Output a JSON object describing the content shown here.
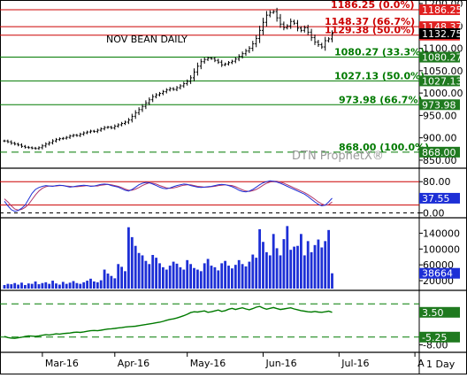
{
  "chart_title": "NOV BEAN DAILY",
  "watermark": "DTN ProphetX®",
  "timeframe": "1 Day",
  "colors": {
    "bar": "#000000",
    "resistance_line": "#cc0000",
    "support_line": "#007a00",
    "stoch_k": "#1d2fd6",
    "stoch_d": "#b0366a",
    "volume": "#1d2fd6",
    "cot": "#007a00",
    "tag_red": "#e02020",
    "tag_black": "#000000",
    "tag_green": "#1f7a1f",
    "tag_blue": "#1d2fd6"
  },
  "price_panel": {
    "ylim": [
      840,
      1200
    ],
    "ticks": [
      {
        "value": 1200,
        "label": "1200.00"
      },
      {
        "value": 1150,
        "label": "1150.00"
      },
      {
        "value": 1100,
        "label": "1100.00"
      },
      {
        "value": 1050,
        "label": "1050.00"
      },
      {
        "value": 1000,
        "label": "1000.00"
      },
      {
        "value": 950,
        "label": "950.00"
      },
      {
        "value": 900,
        "label": "900.00"
      },
      {
        "value": 850,
        "label": "850.00"
      }
    ],
    "retracements": [
      {
        "value": 1186.25,
        "text": "1186.25 (0.0%)",
        "tag": "1186.25",
        "style": "red"
      },
      {
        "value": 1148.37,
        "text": "1148.37 (66.7%)",
        "tag": "1148.37",
        "style": "red"
      },
      {
        "value": 1129.38,
        "text": "1129.38 (50.0%)",
        "tag": "1129.38",
        "style": "red"
      },
      {
        "value": 1080.27,
        "text": "1080.27 (33.3%)",
        "tag": "1080.27",
        "style": "green"
      },
      {
        "value": 1027.13,
        "text": "1027.13 (50.0%)",
        "tag": "1027.13",
        "style": "green"
      },
      {
        "value": 973.98,
        "text": "973.98 (66.7%)",
        "tag": "973.98",
        "style": "green"
      },
      {
        "value": 868.0,
        "text": "868.00 (100.0%)",
        "tag": "868.00",
        "style": "green_dash"
      }
    ],
    "last_price": {
      "value": 1132.75,
      "label": "1132.75"
    }
  },
  "stoch_panel": {
    "ylim": [
      -8,
      110
    ],
    "ticks": [
      {
        "value": 80,
        "label": "80.00"
      },
      {
        "value": 0,
        "label": "0.00"
      }
    ],
    "bands": [
      80,
      20
    ],
    "last": {
      "value": 37.55,
      "label": "37.55"
    }
  },
  "volume_panel": {
    "ylim": [
      0,
      170000
    ],
    "ticks": [
      {
        "value": 140000,
        "label": "140000"
      },
      {
        "value": 100000,
        "label": "100000"
      },
      {
        "value": 60000,
        "label": "60000"
      },
      {
        "value": 20000,
        "label": "20000"
      }
    ],
    "last": {
      "value": 38664,
      "label": "38664"
    },
    "values": [
      9000,
      12000,
      11000,
      14000,
      10000,
      15000,
      9000,
      13000,
      12000,
      18000,
      11000,
      14000,
      16000,
      12000,
      20000,
      13000,
      10000,
      17000,
      12000,
      15000,
      19000,
      14000,
      12000,
      16000,
      20000,
      25000,
      18000,
      16000,
      21000,
      48000,
      38000,
      32000,
      26000,
      62000,
      55000,
      44000,
      155000,
      130000,
      108000,
      90000,
      84000,
      70000,
      62000,
      85000,
      78000,
      64000,
      54000,
      48000,
      58000,
      68000,
      63000,
      54000,
      48000,
      72000,
      62000,
      52000,
      48000,
      44000,
      64000,
      75000,
      58000,
      54000,
      46000,
      64000,
      70000,
      58000,
      51000,
      60000,
      72000,
      62000,
      56000,
      68000,
      86000,
      78000,
      150000,
      118000,
      92000,
      84000,
      138000,
      102000,
      84000,
      125000,
      158000,
      98000,
      106000,
      108000,
      138000,
      84000,
      120000,
      92000,
      110000,
      124000,
      104000,
      120000,
      148000,
      38664
    ]
  },
  "cot_panel": {
    "ylim": [
      -10,
      10
    ],
    "levels": [
      6.5,
      -5.25
    ],
    "ticks": [
      {
        "value": -8,
        "label": "-8.00"
      }
    ],
    "tags": [
      {
        "value": 3.5,
        "label": "3.50"
      },
      {
        "value": -5.25,
        "label": "-5.25"
      }
    ]
  },
  "x_axis": {
    "labels": [
      {
        "label": "Mar-16",
        "index": 11
      },
      {
        "label": "Apr-16",
        "index": 32
      },
      {
        "label": "May-16",
        "index": 53
      },
      {
        "label": "Jun-16",
        "index": 75
      },
      {
        "label": "Jul-16",
        "index": 97
      },
      {
        "label": "A",
        "index": 119
      }
    ]
  },
  "chart_data": {
    "type": "bar",
    "title": "NOV BEAN DAILY",
    "xlabel": "",
    "ylabel": "",
    "ylim": [
      840,
      1200
    ],
    "x_ticks": [
      "Mar-16",
      "Apr-16",
      "May-16",
      "Jun-16",
      "Jul-16",
      "A"
    ],
    "closes": [
      893,
      891,
      888,
      886,
      884,
      881,
      879,
      878,
      877,
      876,
      878,
      882,
      886,
      889,
      893,
      896,
      898,
      899,
      901,
      904,
      906,
      905,
      908,
      911,
      913,
      915,
      914,
      917,
      920,
      923,
      924,
      922,
      926,
      929,
      932,
      935,
      940,
      948,
      956,
      963,
      970,
      978,
      985,
      992,
      996,
      999,
      1003,
      1007,
      1010,
      1008,
      1012,
      1016,
      1021,
      1026,
      1034,
      1047,
      1060,
      1070,
      1075,
      1078,
      1077,
      1073,
      1069,
      1063,
      1065,
      1068,
      1071,
      1076,
      1082,
      1088,
      1094,
      1100,
      1110,
      1122,
      1140,
      1158,
      1174,
      1180,
      1182,
      1168,
      1154,
      1146,
      1150,
      1160,
      1156,
      1145,
      1140,
      1146,
      1136,
      1124,
      1114,
      1108,
      1103,
      1117,
      1121,
      1132.75
    ],
    "stochastic_k": [
      30,
      18,
      8,
      4,
      6,
      12,
      20,
      35,
      50,
      60,
      65,
      68,
      70,
      69,
      68,
      70,
      71,
      70,
      68,
      66,
      67,
      69,
      70,
      71,
      70,
      68,
      69,
      71,
      73,
      74,
      73,
      70,
      68,
      66,
      62,
      58,
      56,
      60,
      66,
      72,
      76,
      78,
      77,
      74,
      70,
      66,
      63,
      62,
      64,
      67,
      70,
      72,
      74,
      73,
      70,
      68,
      66,
      65,
      66,
      67,
      68,
      70,
      72,
      73,
      72,
      70,
      67,
      63,
      58,
      55,
      54,
      56,
      60,
      66,
      72,
      77,
      80,
      82,
      81,
      79,
      76,
      72,
      68,
      64,
      60,
      56,
      52,
      48,
      42,
      35,
      28,
      22,
      18,
      20,
      28,
      37.55
    ],
    "stochastic_d": [
      36,
      28,
      18,
      10,
      7,
      9,
      14,
      22,
      34,
      46,
      56,
      63,
      67,
      69,
      69,
      69,
      70,
      70,
      69,
      68,
      67,
      67,
      68,
      69,
      70,
      69,
      69,
      69,
      71,
      72,
      73,
      72,
      70,
      68,
      65,
      61,
      58,
      58,
      61,
      65,
      70,
      74,
      77,
      76,
      74,
      70,
      67,
      64,
      63,
      64,
      66,
      69,
      71,
      72,
      72,
      70,
      68,
      67,
      66,
      66,
      67,
      68,
      70,
      71,
      72,
      71,
      70,
      67,
      63,
      59,
      56,
      55,
      57,
      60,
      65,
      71,
      76,
      79,
      81,
      81,
      79,
      76,
      72,
      68,
      64,
      60,
      56,
      52,
      47,
      41,
      35,
      28,
      23,
      20,
      21,
      28
    ],
    "volume": [
      9000,
      12000,
      11000,
      14000,
      10000,
      15000,
      9000,
      13000,
      12000,
      18000,
      11000,
      14000,
      16000,
      12000,
      20000,
      13000,
      10000,
      17000,
      12000,
      15000,
      19000,
      14000,
      12000,
      16000,
      20000,
      25000,
      18000,
      16000,
      21000,
      48000,
      38000,
      32000,
      26000,
      62000,
      55000,
      44000,
      155000,
      130000,
      108000,
      90000,
      84000,
      70000,
      62000,
      85000,
      78000,
      64000,
      54000,
      48000,
      58000,
      68000,
      63000,
      54000,
      48000,
      72000,
      62000,
      52000,
      48000,
      44000,
      64000,
      75000,
      58000,
      54000,
      46000,
      64000,
      70000,
      58000,
      51000,
      60000,
      72000,
      62000,
      56000,
      68000,
      86000,
      78000,
      150000,
      118000,
      92000,
      84000,
      138000,
      102000,
      84000,
      125000,
      158000,
      98000,
      106000,
      108000,
      138000,
      84000,
      120000,
      92000,
      110000,
      124000,
      104000,
      120000,
      148000,
      38664
    ],
    "cot_index": [
      -5,
      -5.4,
      -5.6,
      -5.7,
      -5.5,
      -5.3,
      -5,
      -4.8,
      -4.9,
      -5,
      -4.8,
      -4.6,
      -4.4,
      -4.5,
      -4.3,
      -4.1,
      -4.2,
      -4,
      -3.9,
      -3.8,
      -3.6,
      -3.5,
      -3.6,
      -3.4,
      -3.2,
      -3,
      -2.9,
      -3,
      -2.8,
      -2.6,
      -2.4,
      -2.3,
      -2.2,
      -2,
      -1.9,
      -1.7,
      -1.6,
      -1.5,
      -1.4,
      -1.2,
      -1,
      -0.8,
      -0.6,
      -0.4,
      -0.2,
      0,
      0.3,
      0.7,
      1,
      1.2,
      1.5,
      1.9,
      2.3,
      2.8,
      3.4,
      3.7,
      3.6,
      3.8,
      4,
      3.5,
      3.7,
      4,
      4.3,
      3.8,
      4.1,
      4.6,
      4.9,
      4.5,
      4.8,
      5.1,
      4.7,
      4.4,
      4.8,
      5.3,
      5.6,
      5,
      4.6,
      4.9,
      5.2,
      4.8,
      4.5,
      4.7,
      4.9,
      5.1,
      4.7,
      4.4,
      4.1,
      3.9,
      3.7,
      3.6,
      3.8,
      3.6,
      3.5,
      3.7,
      3.9,
      3.5
    ]
  }
}
